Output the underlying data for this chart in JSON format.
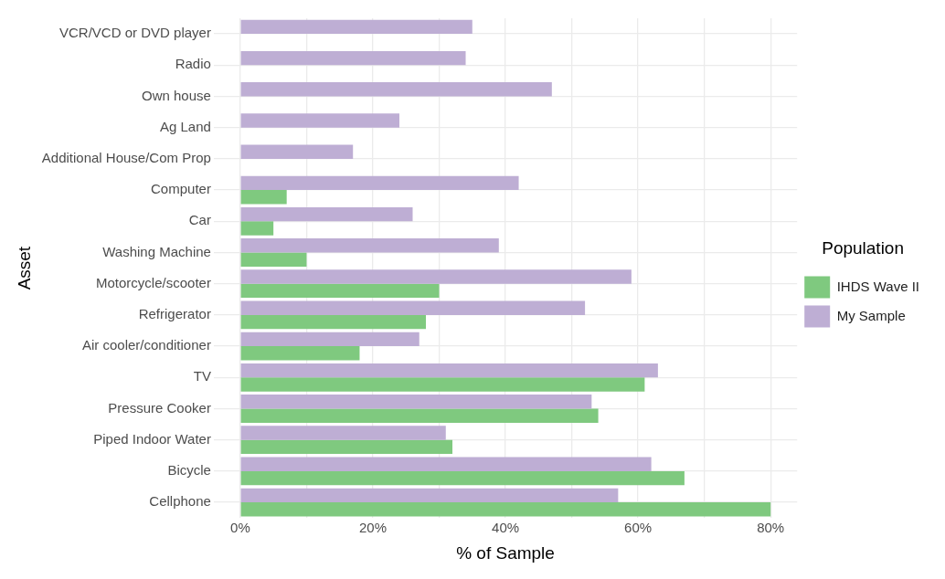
{
  "chart_data": {
    "type": "bar",
    "orientation": "horizontal",
    "xlabel": "% of Sample",
    "ylabel": "Asset",
    "legend_title": "Population",
    "legend": "right",
    "grid": true,
    "categories": [
      "VCR/VCD or DVD player",
      "Radio",
      "Own house",
      "Ag Land",
      "Additional House/Com Prop",
      "Computer",
      "Car",
      "Washing Machine",
      "Motorcycle/scooter",
      "Refrigerator",
      "Air cooler/conditioner",
      "TV",
      "Pressure Cooker",
      "Piped Indoor Water",
      "Bicycle",
      "Cellphone"
    ],
    "series": [
      {
        "name": "IHDS Wave II",
        "color": "#7fc97f",
        "values": [
          null,
          null,
          null,
          null,
          null,
          7,
          5,
          10,
          30,
          28,
          18,
          61,
          54,
          32,
          67,
          80
        ]
      },
      {
        "name": "My Sample",
        "color": "#beaed4",
        "values": [
          35,
          34,
          47,
          24,
          17,
          42,
          26,
          39,
          59,
          52,
          27,
          63,
          53,
          31,
          62,
          57
        ]
      }
    ],
    "xlim": [
      -4,
      84
    ],
    "xticks": [
      {
        "value": 0,
        "label": "0%"
      },
      {
        "value": 10,
        "label": null
      },
      {
        "value": 20,
        "label": "20%"
      },
      {
        "value": 30,
        "label": null
      },
      {
        "value": 40,
        "label": "40%"
      },
      {
        "value": 50,
        "label": null
      },
      {
        "value": 60,
        "label": "60%"
      },
      {
        "value": 70,
        "label": null
      },
      {
        "value": 80,
        "label": "80%"
      }
    ]
  }
}
